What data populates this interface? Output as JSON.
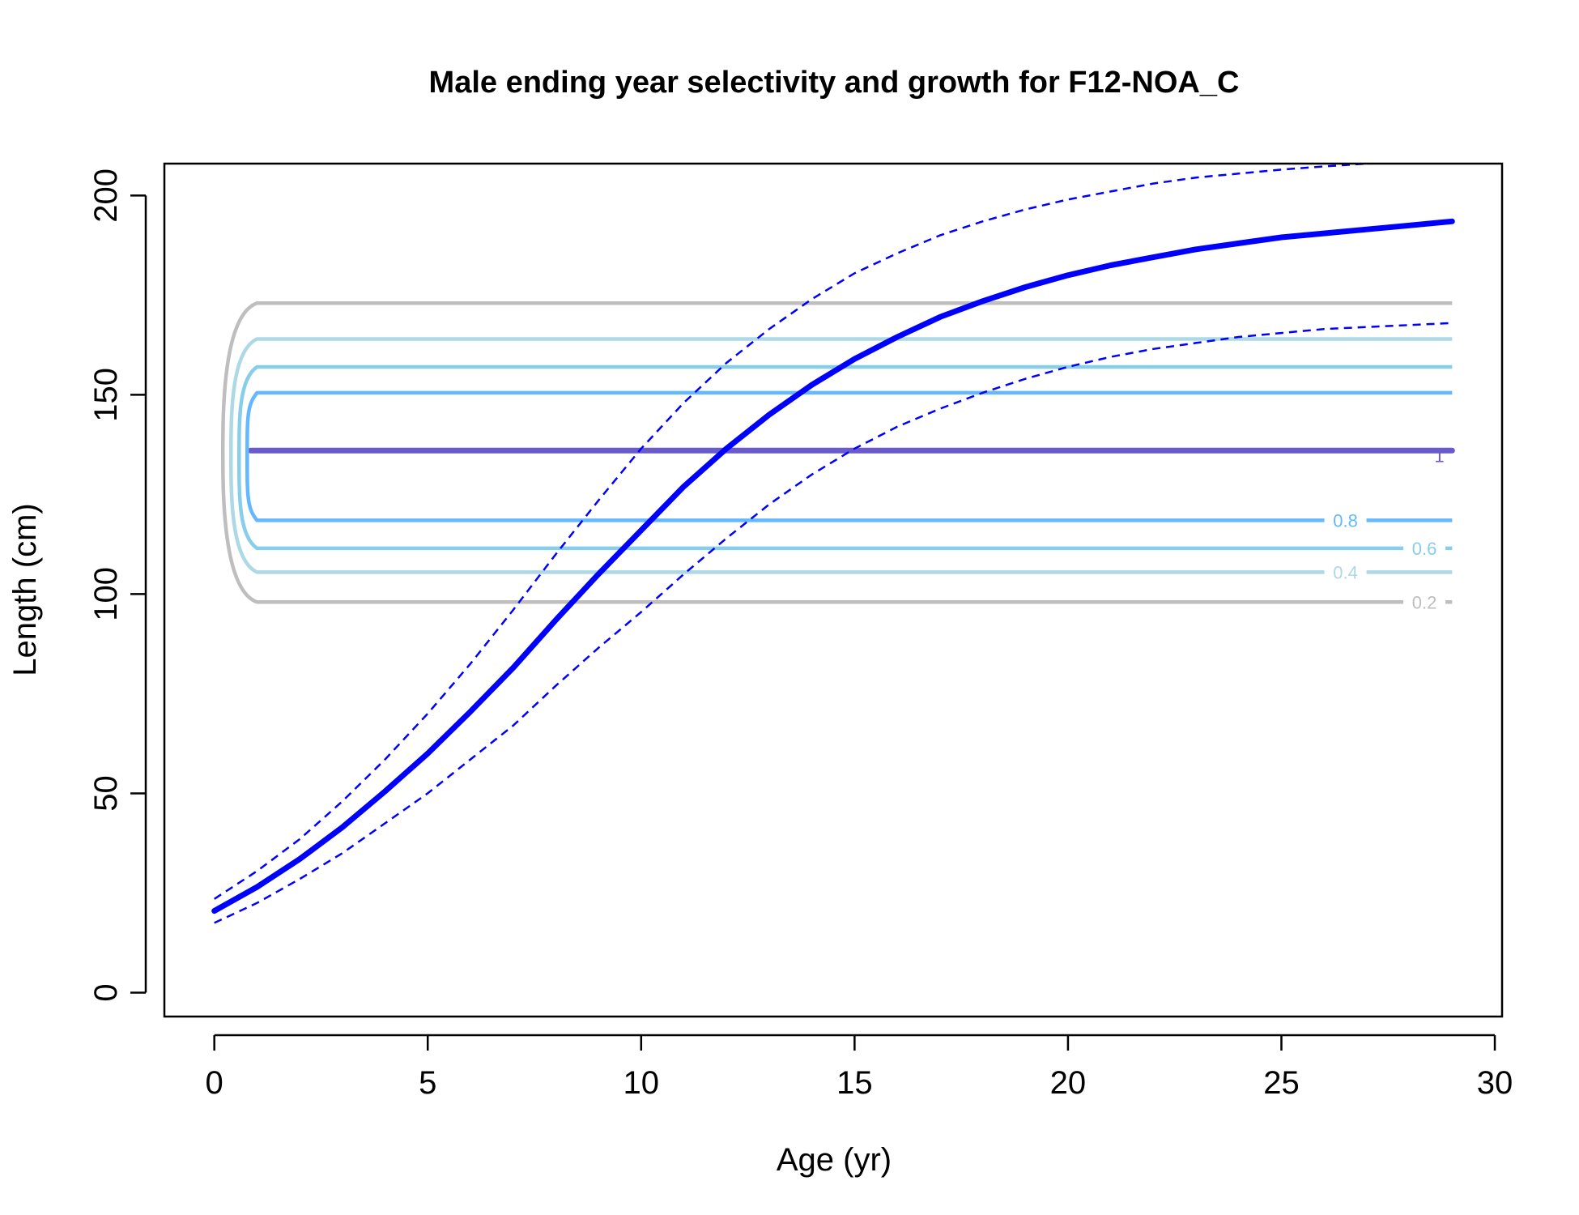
{
  "chart_data": {
    "type": "line",
    "title": "Male ending year selectivity and growth for F12-NOA_C",
    "xlabel": "Age (yr)",
    "ylabel": "Length (cm)",
    "xlim": [
      -1.17,
      30.17
    ],
    "ylim": [
      -6,
      208
    ],
    "xticks": [
      0,
      5,
      10,
      15,
      20,
      25,
      30
    ],
    "yticks": [
      0,
      50,
      100,
      150,
      200
    ],
    "growth": {
      "color": "#0000ff",
      "x": [
        0,
        1,
        2,
        3,
        4,
        5,
        6,
        7,
        8,
        9,
        10,
        11,
        12,
        13,
        14,
        15,
        16,
        17,
        18,
        19,
        20,
        21,
        22,
        23,
        24,
        25,
        26,
        27,
        28,
        29
      ],
      "mean": [
        20.5,
        26.5,
        33.5,
        41.5,
        50.5,
        60,
        70.5,
        81.5,
        93.5,
        105,
        116,
        127,
        136.5,
        145,
        152.5,
        159,
        164.5,
        169.5,
        173.5,
        177,
        180,
        182.5,
        184.5,
        186.5,
        188,
        189.5,
        190.5,
        191.5,
        192.5,
        193.5
      ],
      "upper": [
        23.5,
        30.5,
        38.5,
        48,
        58.5,
        70,
        82.5,
        96,
        110,
        123.5,
        136.5,
        148,
        158,
        166.5,
        174,
        180.5,
        185.5,
        190,
        193.5,
        196.5,
        199,
        201,
        203,
        204.5,
        205.5,
        206.5,
        207.3,
        208,
        208.5,
        209
      ],
      "lower": [
        17.5,
        22.5,
        28.5,
        35,
        42.5,
        50,
        58.5,
        67,
        77,
        86.5,
        95.5,
        105,
        114,
        122.5,
        130,
        136.5,
        142,
        146.5,
        150.5,
        154,
        157,
        159.5,
        161.5,
        163,
        164.5,
        165.5,
        166.5,
        167,
        167.5,
        168
      ]
    },
    "selectivity_contours": [
      {
        "level": 1,
        "label": "1",
        "color": "#6a5acd",
        "y": 136
      },
      {
        "level": 0.8,
        "label": "0.8",
        "color": "#63b8ff",
        "y_low": 118.5,
        "y_high": 150.5
      },
      {
        "level": 0.6,
        "label": "0.6",
        "color": "#87ceeb",
        "y_low": 111.5,
        "y_high": 157
      },
      {
        "level": 0.4,
        "label": "0.4",
        "color": "#add8e6",
        "y_low": 105.5,
        "y_high": 164
      },
      {
        "level": 0.2,
        "label": "0.2",
        "color": "#bebebe",
        "y_low": 98,
        "y_high": 173
      }
    ],
    "contour_x_range": [
      0,
      29
    ]
  }
}
